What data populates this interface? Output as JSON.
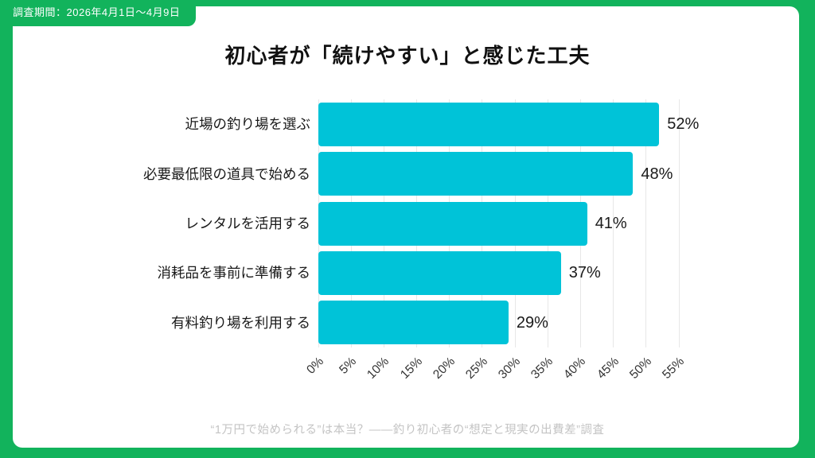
{
  "badge": {
    "label": "調査期間：2026年4月1日～4月9日"
  },
  "title": "初心者が「続けやすい」と感じた工夫",
  "footer": "“1万円で始められる”は本当？——釣り初心者の“想定と現実の出費差”調査",
  "colors": {
    "frame_green": "#12b35c",
    "bar_cyan": "#00c3d8",
    "grid_gray": "#e7e7e7",
    "text_dark": "#1a1a1a",
    "footer_gray": "#c4c4c4"
  },
  "chart_data": {
    "type": "bar",
    "orientation": "horizontal",
    "title": "初心者が「続けやすい」と感じた工夫",
    "categories": [
      "近場の釣り場を選ぶ",
      "必要最低限の道具で始める",
      "レンタルを活用する",
      "消耗品を事前に準備する",
      "有料釣り場を利用する"
    ],
    "values": [
      52,
      48,
      41,
      37,
      29
    ],
    "value_labels": [
      "52%",
      "48%",
      "41%",
      "37%",
      "29%"
    ],
    "xlabel": "",
    "ylabel": "",
    "xlim": [
      0,
      55
    ],
    "xticks": [
      0,
      5,
      10,
      15,
      20,
      25,
      30,
      35,
      40,
      45,
      50,
      55
    ],
    "xtick_labels": [
      "0%",
      "5%",
      "10%",
      "15%",
      "20%",
      "25%",
      "30%",
      "35%",
      "40%",
      "45%",
      "50%",
      "55%"
    ],
    "grid": true,
    "legend": false,
    "bar_color": "#00c3d8"
  }
}
